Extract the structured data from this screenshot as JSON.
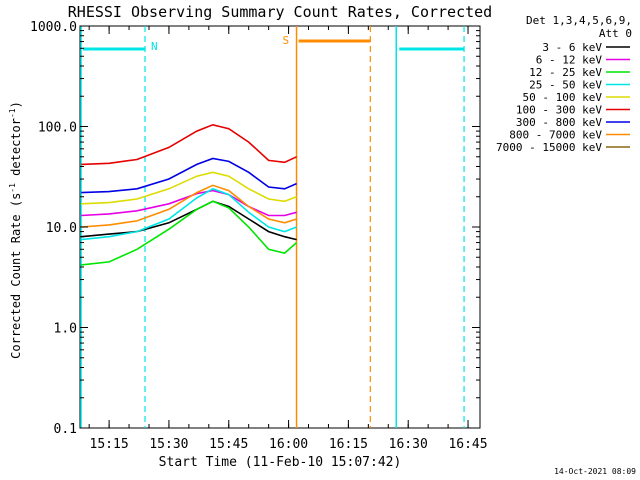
{
  "chart_data": {
    "type": "line",
    "title": "RHESSI Observing Summary Count Rates, Corrected",
    "xlabel": "Start Time (11-Feb-10 15:07:42)",
    "ylabel_main": "Corrected Count Rate (s",
    "ylabel_sup1": "-1",
    "ylabel_mid": " detector",
    "ylabel_sup2": "-1",
    "ylabel_end": ")",
    "yscale": "log",
    "ylim": [
      0.1,
      1000
    ],
    "xlim": [
      "15:07:42",
      "16:48:00"
    ],
    "yticks": [
      "0.1",
      "1.0",
      "10.0",
      "100.0",
      "1000.0"
    ],
    "xticks": [
      "15:15",
      "15:30",
      "15:45",
      "16:00",
      "16:15",
      "16:30",
      "16:45"
    ],
    "legend_header": [
      "Det 1,3,4,5,6,9,",
      "Att 0"
    ],
    "timestamp": "14-Oct-2021 08:09",
    "annotations": {
      "night_label": "N",
      "saa_label": "S"
    },
    "night_intervals": [
      [
        "15:07:42",
        "15:24:00"
      ],
      [
        "16:27:00",
        "16:44:00"
      ]
    ],
    "saa_interval": [
      "16:02:00",
      "16:20:30"
    ],
    "series": [
      {
        "name": "3 - 6 keV",
        "color": "#000000",
        "points": [
          [
            "15:08",
            8.0
          ],
          [
            "15:15",
            8.5
          ],
          [
            "15:22",
            9.0
          ],
          [
            "15:30",
            11.0
          ],
          [
            "15:37",
            15.0
          ],
          [
            "15:41",
            18.0
          ],
          [
            "15:45",
            16.0
          ],
          [
            "15:50",
            12.0
          ],
          [
            "15:55",
            9.0
          ],
          [
            "15:59",
            8.0
          ],
          [
            "16:02",
            7.5
          ]
        ]
      },
      {
        "name": "6 - 12 keV",
        "color": "#e600e6",
        "points": [
          [
            "15:08",
            13.0
          ],
          [
            "15:15",
            13.5
          ],
          [
            "15:22",
            14.5
          ],
          [
            "15:30",
            17.0
          ],
          [
            "15:37",
            21.5
          ],
          [
            "15:41",
            23.0
          ],
          [
            "15:45",
            21.0
          ],
          [
            "15:50",
            16.0
          ],
          [
            "15:55",
            13.0
          ],
          [
            "15:59",
            13.0
          ],
          [
            "16:02",
            14.0
          ]
        ]
      },
      {
        "name": "12 - 25 keV",
        "color": "#00e600",
        "points": [
          [
            "15:08",
            4.2
          ],
          [
            "15:15",
            4.5
          ],
          [
            "15:22",
            6.0
          ],
          [
            "15:30",
            9.5
          ],
          [
            "15:37",
            15.0
          ],
          [
            "15:41",
            18.0
          ],
          [
            "15:45",
            15.5
          ],
          [
            "15:50",
            10.0
          ],
          [
            "15:55",
            6.0
          ],
          [
            "15:59",
            5.5
          ],
          [
            "16:02",
            7.0
          ]
        ]
      },
      {
        "name": "25 - 50 keV",
        "color": "#00e6e6",
        "points": [
          [
            "15:08",
            7.5
          ],
          [
            "15:15",
            8.0
          ],
          [
            "15:22",
            9.0
          ],
          [
            "15:30",
            12.0
          ],
          [
            "15:37",
            19.5
          ],
          [
            "15:41",
            24.0
          ],
          [
            "15:45",
            21.0
          ],
          [
            "15:50",
            14.0
          ],
          [
            "15:55",
            10.0
          ],
          [
            "15:59",
            9.0
          ],
          [
            "16:02",
            10.0
          ]
        ]
      },
      {
        "name": "50 - 100 keV",
        "color": "#dcdc00",
        "points": [
          [
            "15:08",
            17.0
          ],
          [
            "15:15",
            17.5
          ],
          [
            "15:22",
            19.0
          ],
          [
            "15:30",
            24.0
          ],
          [
            "15:37",
            32.0
          ],
          [
            "15:41",
            35.0
          ],
          [
            "15:45",
            32.0
          ],
          [
            "15:50",
            24.0
          ],
          [
            "15:55",
            19.0
          ],
          [
            "15:59",
            18.0
          ],
          [
            "16:02",
            20.0
          ]
        ]
      },
      {
        "name": "100 - 300 keV",
        "color": "#e60000",
        "points": [
          [
            "15:08",
            42.0
          ],
          [
            "15:15",
            43.0
          ],
          [
            "15:22",
            47.0
          ],
          [
            "15:30",
            62.0
          ],
          [
            "15:37",
            90.0
          ],
          [
            "15:41",
            104.0
          ],
          [
            "15:45",
            95.0
          ],
          [
            "15:50",
            70.0
          ],
          [
            "15:55",
            46.0
          ],
          [
            "15:59",
            44.0
          ],
          [
            "16:02",
            50.0
          ]
        ]
      },
      {
        "name": "300 - 800 keV",
        "color": "#0000e6",
        "points": [
          [
            "15:08",
            22.0
          ],
          [
            "15:15",
            22.5
          ],
          [
            "15:22",
            24.0
          ],
          [
            "15:30",
            30.0
          ],
          [
            "15:37",
            42.0
          ],
          [
            "15:41",
            48.0
          ],
          [
            "15:45",
            45.0
          ],
          [
            "15:50",
            35.0
          ],
          [
            "15:55",
            25.0
          ],
          [
            "15:59",
            24.0
          ],
          [
            "16:02",
            27.0
          ]
        ]
      },
      {
        "name": "800 - 7000 keV",
        "color": "#ff8c00",
        "points": [
          [
            "15:08",
            10.0
          ],
          [
            "15:15",
            10.5
          ],
          [
            "15:22",
            11.5
          ],
          [
            "15:30",
            15.0
          ],
          [
            "15:37",
            22.0
          ],
          [
            "15:41",
            26.0
          ],
          [
            "15:45",
            23.0
          ],
          [
            "15:50",
            16.0
          ],
          [
            "15:55",
            12.0
          ],
          [
            "15:59",
            11.0
          ],
          [
            "16:02",
            12.0
          ]
        ]
      },
      {
        "name": "7000 - 15000 keV",
        "color": "#8b6914",
        "points": []
      }
    ]
  }
}
